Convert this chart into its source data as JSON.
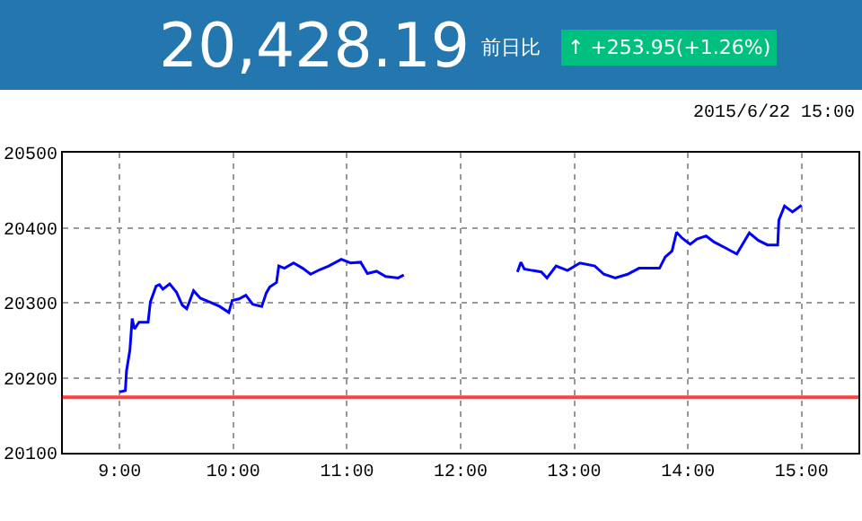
{
  "chart_data": {
    "type": "line",
    "title": "20,428.19",
    "annotations": [
      "前日比",
      "↑ +253.95(+1.26%)",
      "2015/6/22 15:00"
    ],
    "x": [
      9.0,
      9.05,
      9.06,
      9.09,
      9.11,
      9.13,
      9.17,
      9.25,
      9.27,
      9.32,
      9.35,
      9.38,
      9.44,
      9.5,
      9.55,
      9.59,
      9.65,
      9.71,
      9.79,
      9.88,
      9.96,
      9.99,
      10.05,
      10.11,
      10.17,
      10.25,
      10.29,
      10.32,
      10.38,
      10.4,
      10.45,
      10.53,
      10.61,
      10.68,
      10.76,
      10.84,
      10.95,
      11.03,
      11.12,
      11.18,
      11.26,
      11.34,
      11.45,
      11.5,
      12.0,
      12.5,
      12.53,
      12.56,
      12.63,
      12.71,
      12.76,
      12.84,
      12.94,
      13.05,
      13.18,
      13.26,
      13.36,
      13.47,
      13.57,
      13.75,
      13.8,
      13.86,
      13.9,
      13.95,
      14.02,
      14.08,
      14.16,
      14.23,
      14.33,
      14.43,
      14.54,
      14.62,
      14.7,
      14.79,
      14.8,
      14.85,
      14.92,
      15.0
    ],
    "series": [
      {
        "color": "#0000ff",
        "values": [
          20181,
          20183,
          20209,
          20237,
          20279,
          20265,
          20274,
          20274,
          20301,
          20322,
          20324,
          20318,
          20325,
          20314,
          20297,
          20292,
          20316,
          20306,
          20301,
          20295,
          20287,
          20303,
          20305,
          20310,
          20298,
          20295,
          20313,
          20321,
          20327,
          20349,
          20346,
          20353,
          20346,
          20338,
          20344,
          20349,
          20358,
          20353,
          20354,
          20339,
          20342,
          20335,
          20333,
          20337,
          null,
          20341,
          20354,
          20345,
          20343,
          20341,
          20333,
          20349,
          20343,
          20353,
          20349,
          20338,
          20333,
          20338,
          20346,
          20346,
          20361,
          20369,
          20394,
          20386,
          20378,
          20385,
          20389,
          20381,
          20373,
          20365,
          20393,
          20383,
          20377,
          20377,
          20410,
          20429,
          20421,
          20430
        ]
      }
    ],
    "xlim": [
      8.5,
      15.5
    ],
    "xticks": [
      {
        "value": 9,
        "label": "9:00"
      },
      {
        "value": 10,
        "label": "10:00"
      },
      {
        "value": 11,
        "label": "11:00"
      },
      {
        "value": 12,
        "label": "12:00"
      },
      {
        "value": 13,
        "label": "13:00"
      },
      {
        "value": 14,
        "label": "14:00"
      },
      {
        "value": 15,
        "label": "15:00"
      }
    ],
    "ylim": [
      20100,
      20500
    ],
    "yticks": [
      20100,
      20200,
      20300,
      20400,
      20500
    ],
    "grid": true,
    "line_style": "solid",
    "ref_lines": [
      {
        "axis": "y",
        "value": 20174,
        "color": "#ff4040"
      }
    ]
  }
}
